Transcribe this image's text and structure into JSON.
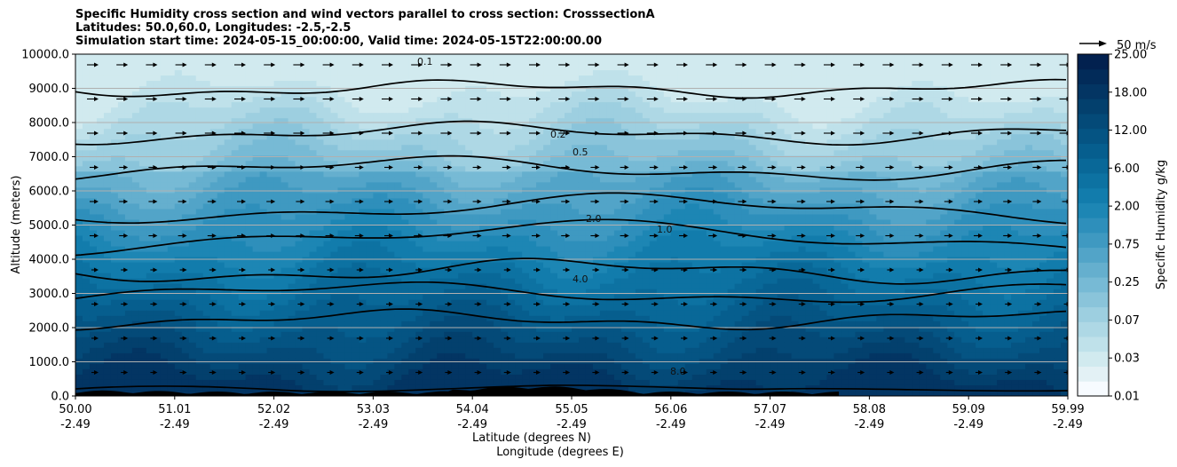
{
  "titles": {
    "line1": "Specific Humidity cross section and wind vectors parallel to cross section: CrosssectionA",
    "line2": "Latitudes: 50.0,60.0, Longitudes: -2.5,-2.5",
    "line3": "Simulation start time: 2024-05-15_00:00:00, Valid time: 2024-05-15T22:00:00.00"
  },
  "chart_data": {
    "type": "heatmap",
    "title": "Specific Humidity cross section and wind vectors parallel to cross section: CrosssectionA",
    "ylabel": "Altitude (meters)",
    "xlabel_lat": "Latitude (degrees N)",
    "xlabel_lon": "Longitude (degrees E)",
    "ylim": [
      0,
      10000
    ],
    "xlim": [
      50.0,
      59.99
    ],
    "y_ticks": [
      "0.0",
      "1000.0",
      "2000.0",
      "3000.0",
      "4000.0",
      "5000.0",
      "6000.0",
      "7000.0",
      "8000.0",
      "9000.0",
      "10000.0"
    ],
    "x_ticks": [
      {
        "lat": "50.00",
        "lon": "-2.49"
      },
      {
        "lat": "51.01",
        "lon": "-2.49"
      },
      {
        "lat": "52.02",
        "lon": "-2.49"
      },
      {
        "lat": "53.03",
        "lon": "-2.49"
      },
      {
        "lat": "54.04",
        "lon": "-2.49"
      },
      {
        "lat": "55.05",
        "lon": "-2.49"
      },
      {
        "lat": "56.06",
        "lon": "-2.49"
      },
      {
        "lat": "57.07",
        "lon": "-2.49"
      },
      {
        "lat": "58.08",
        "lon": "-2.49"
      },
      {
        "lat": "59.09",
        "lon": "-2.49"
      },
      {
        "lat": "59.99",
        "lon": "-2.49"
      }
    ],
    "grid": "horizontal",
    "colorbar": {
      "label": "Specific Humidity g/kg",
      "levels": [
        0.01,
        0.02,
        0.03,
        0.05,
        0.07,
        0.1,
        0.15,
        0.25,
        0.4,
        0.5,
        0.75,
        1.0,
        1.5,
        2.0,
        3.0,
        4.0,
        6.0,
        8.0,
        10.0,
        12.0,
        15.0,
        18.0,
        22.0,
        25.0
      ],
      "tick_labels": [
        "0.01",
        "0.03",
        "0.07",
        "0.25",
        "0.75",
        "2.00",
        "6.00",
        "12.00",
        "18.00",
        "25.00"
      ],
      "colors": [
        "#f7fbff",
        "#e3f1f5",
        "#d1eaef",
        "#bfe1ea",
        "#aed8e5",
        "#9dcfe0",
        "#8ac4da",
        "#77bad5",
        "#65afce",
        "#52a4c8",
        "#3f99c1",
        "#2e8fbb",
        "#1d86b4",
        "#127cac",
        "#0d72a2",
        "#096898",
        "#065e8e",
        "#055483",
        "#044a78",
        "#03406d",
        "#033563",
        "#022b59",
        "#02214f"
      ]
    },
    "contour_levels": [
      "0.1",
      "0.2",
      "0.5",
      "1.0",
      "2.0",
      "4.0",
      "8.0"
    ],
    "quiver_key": "50 m/s",
    "terrain_color": "#000000"
  }
}
